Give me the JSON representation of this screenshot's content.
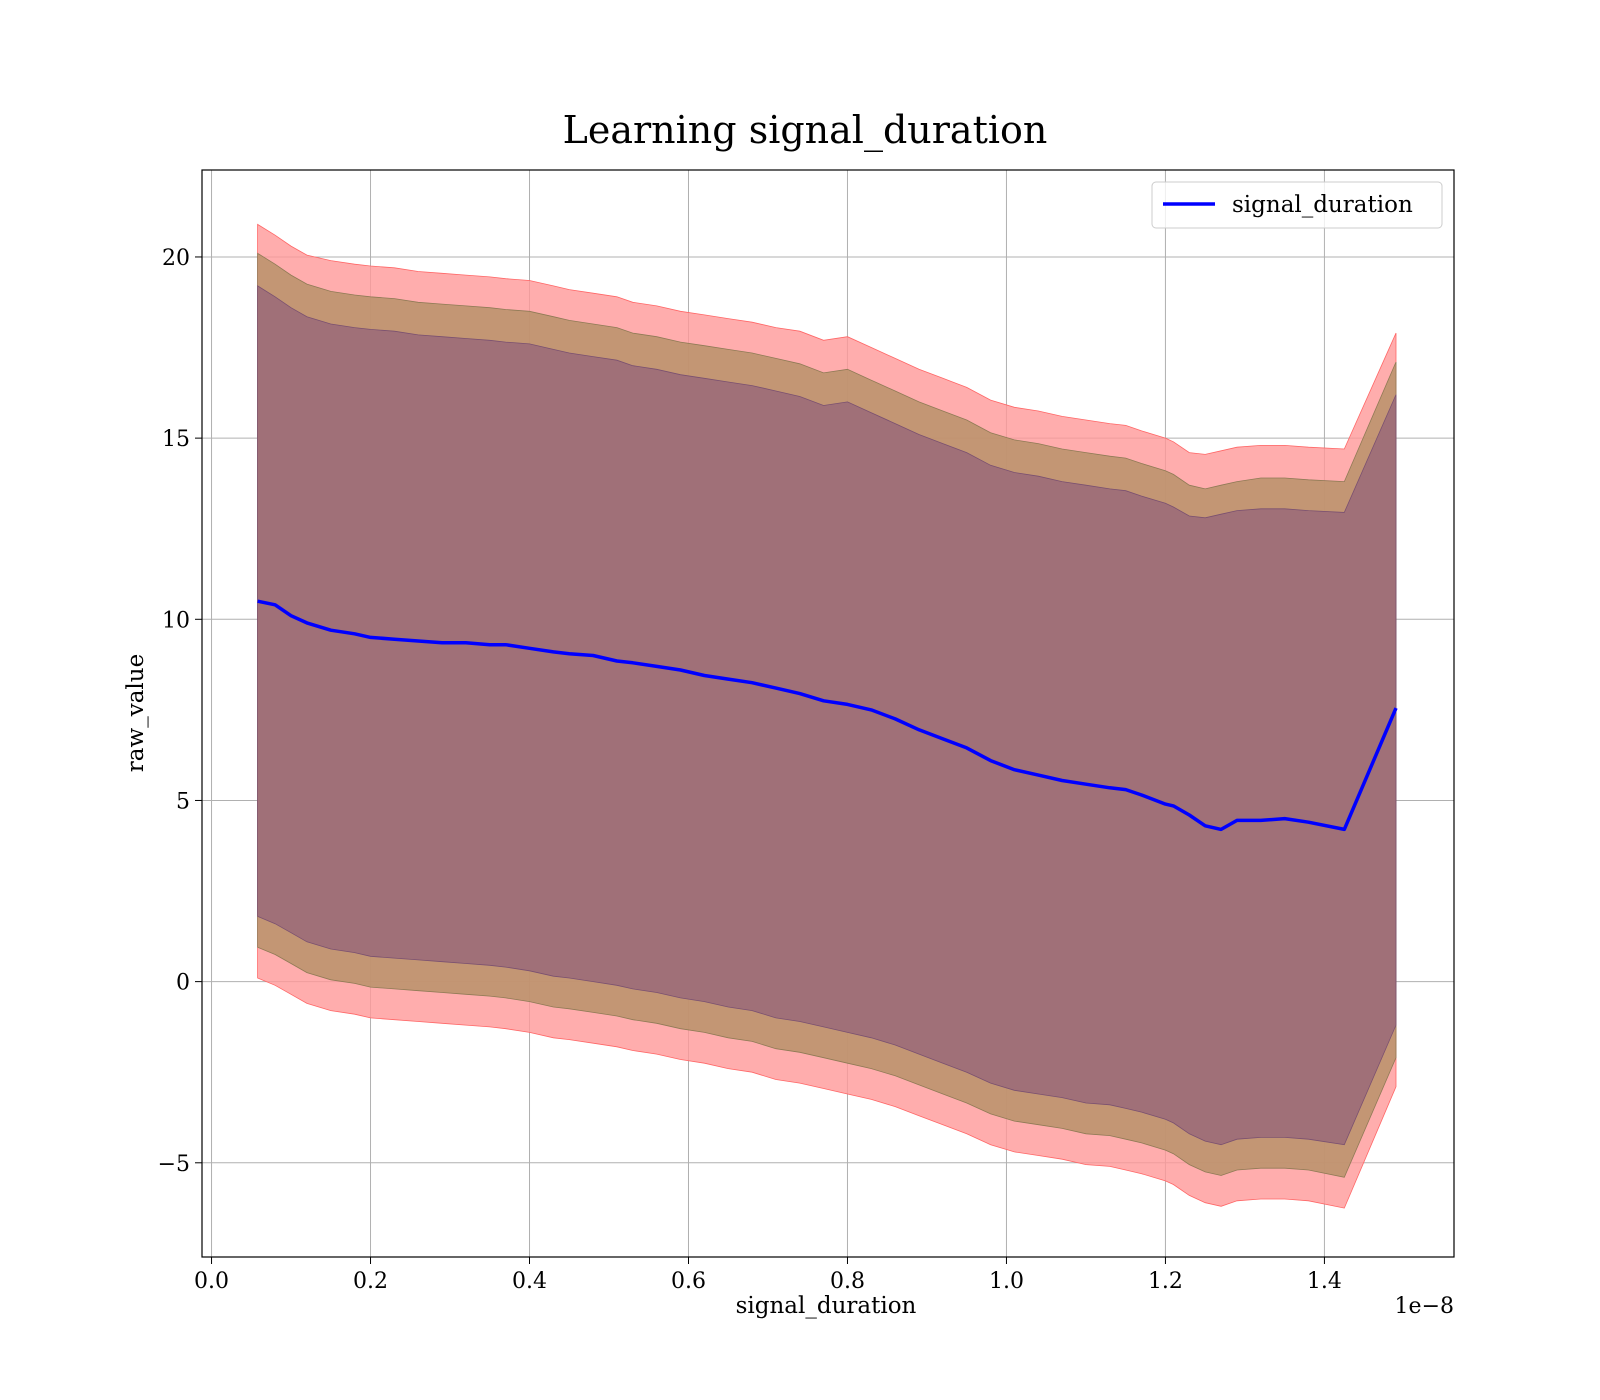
{
  "chart_data": {
    "type": "line",
    "title": "Learning signal_duration",
    "xlabel": "signal_duration",
    "ylabel": "raw_value",
    "x_offset_label": "1e−8",
    "xlim": [
      -0.012,
      1.563
    ],
    "ylim": [
      -7.6,
      22.4
    ],
    "x_ticks": [
      0.0,
      0.2,
      0.4,
      0.6,
      0.8,
      1.0,
      1.2,
      1.4
    ],
    "x_tick_labels": [
      "0.0",
      "0.2",
      "0.4",
      "0.6",
      "0.8",
      "1.0",
      "1.2",
      "1.4"
    ],
    "y_ticks": [
      -5,
      0,
      5,
      10,
      15,
      20
    ],
    "y_tick_labels": [
      "−5",
      "0",
      "5",
      "10",
      "15",
      "20"
    ],
    "grid": true,
    "legend": {
      "position": "top-right",
      "entries": [
        "signal_duration"
      ]
    },
    "colors": {
      "line": "#0000ff",
      "band_outer": "#ff9999",
      "band_mid": "#b8926a",
      "band_inner": "#a07078"
    },
    "series": [
      {
        "name": "signal_duration",
        "x": [
          0.058,
          0.08,
          0.1,
          0.12,
          0.15,
          0.18,
          0.2,
          0.23,
          0.26,
          0.29,
          0.32,
          0.35,
          0.37,
          0.4,
          0.43,
          0.45,
          0.48,
          0.51,
          0.53,
          0.56,
          0.59,
          0.62,
          0.65,
          0.68,
          0.71,
          0.74,
          0.77,
          0.8,
          0.83,
          0.86,
          0.89,
          0.92,
          0.95,
          0.98,
          1.01,
          1.04,
          1.07,
          1.1,
          1.13,
          1.15,
          1.17,
          1.2,
          1.21,
          1.23,
          1.25,
          1.27,
          1.29,
          1.32,
          1.35,
          1.38,
          1.425,
          1.49
        ],
        "y": [
          10.5,
          10.4,
          10.1,
          9.9,
          9.7,
          9.6,
          9.5,
          9.45,
          9.4,
          9.35,
          9.35,
          9.3,
          9.3,
          9.2,
          9.1,
          9.05,
          9.0,
          8.85,
          8.8,
          8.7,
          8.6,
          8.45,
          8.35,
          8.25,
          8.1,
          7.95,
          7.75,
          7.65,
          7.5,
          7.25,
          6.95,
          6.7,
          6.45,
          6.1,
          5.85,
          5.7,
          5.55,
          5.45,
          5.35,
          5.3,
          5.15,
          4.9,
          4.85,
          4.6,
          4.3,
          4.2,
          4.45,
          4.45,
          4.5,
          4.4,
          4.2,
          7.55
        ],
        "band_outer_upper": [
          20.9,
          20.6,
          20.3,
          20.05,
          19.9,
          19.8,
          19.75,
          19.7,
          19.6,
          19.55,
          19.5,
          19.45,
          19.4,
          19.35,
          19.2,
          19.1,
          19.0,
          18.9,
          18.75,
          18.65,
          18.5,
          18.4,
          18.3,
          18.2,
          18.05,
          17.95,
          17.7,
          17.8,
          17.5,
          17.2,
          16.9,
          16.65,
          16.4,
          16.05,
          15.85,
          15.75,
          15.6,
          15.5,
          15.4,
          15.35,
          15.2,
          15.0,
          14.9,
          14.6,
          14.55,
          14.65,
          14.75,
          14.8,
          14.8,
          14.75,
          14.7,
          17.9
        ],
        "band_mid_upper": [
          20.1,
          19.8,
          19.5,
          19.25,
          19.05,
          18.95,
          18.9,
          18.85,
          18.75,
          18.7,
          18.65,
          18.6,
          18.55,
          18.5,
          18.35,
          18.25,
          18.15,
          18.05,
          17.9,
          17.8,
          17.65,
          17.55,
          17.45,
          17.35,
          17.2,
          17.05,
          16.8,
          16.9,
          16.6,
          16.3,
          16.0,
          15.75,
          15.5,
          15.15,
          14.95,
          14.85,
          14.7,
          14.6,
          14.5,
          14.45,
          14.3,
          14.1,
          14.0,
          13.7,
          13.6,
          13.7,
          13.8,
          13.9,
          13.9,
          13.85,
          13.8,
          17.1
        ],
        "band_inner_upper": [
          19.2,
          18.9,
          18.6,
          18.35,
          18.15,
          18.05,
          18.0,
          17.95,
          17.85,
          17.8,
          17.75,
          17.7,
          17.65,
          17.6,
          17.45,
          17.35,
          17.25,
          17.15,
          17.0,
          16.9,
          16.75,
          16.65,
          16.55,
          16.45,
          16.3,
          16.15,
          15.9,
          16.0,
          15.7,
          15.4,
          15.1,
          14.85,
          14.6,
          14.25,
          14.05,
          13.95,
          13.8,
          13.7,
          13.6,
          13.55,
          13.4,
          13.2,
          13.1,
          12.85,
          12.8,
          12.9,
          13.0,
          13.05,
          13.05,
          13.0,
          12.95,
          16.2
        ],
        "band_inner_lower": [
          1.8,
          1.6,
          1.35,
          1.1,
          0.9,
          0.8,
          0.7,
          0.65,
          0.6,
          0.55,
          0.5,
          0.45,
          0.4,
          0.3,
          0.15,
          0.1,
          0.0,
          -0.1,
          -0.2,
          -0.3,
          -0.45,
          -0.55,
          -0.7,
          -0.8,
          -1.0,
          -1.1,
          -1.25,
          -1.4,
          -1.55,
          -1.75,
          -2.0,
          -2.25,
          -2.5,
          -2.8,
          -3.0,
          -3.1,
          -3.2,
          -3.35,
          -3.4,
          -3.5,
          -3.6,
          -3.8,
          -3.9,
          -4.2,
          -4.4,
          -4.5,
          -4.35,
          -4.3,
          -4.3,
          -4.35,
          -4.5,
          -1.2
        ],
        "band_mid_lower": [
          0.95,
          0.75,
          0.5,
          0.25,
          0.05,
          -0.05,
          -0.15,
          -0.2,
          -0.25,
          -0.3,
          -0.35,
          -0.4,
          -0.45,
          -0.55,
          -0.7,
          -0.75,
          -0.85,
          -0.95,
          -1.05,
          -1.15,
          -1.3,
          -1.4,
          -1.55,
          -1.65,
          -1.85,
          -1.95,
          -2.1,
          -2.25,
          -2.4,
          -2.6,
          -2.85,
          -3.1,
          -3.35,
          -3.65,
          -3.85,
          -3.95,
          -4.05,
          -4.2,
          -4.25,
          -4.35,
          -4.45,
          -4.65,
          -4.75,
          -5.05,
          -5.25,
          -5.35,
          -5.2,
          -5.15,
          -5.15,
          -5.2,
          -5.4,
          -2.1
        ],
        "band_outer_lower": [
          0.1,
          -0.1,
          -0.35,
          -0.6,
          -0.8,
          -0.9,
          -1.0,
          -1.05,
          -1.1,
          -1.15,
          -1.2,
          -1.25,
          -1.3,
          -1.4,
          -1.55,
          -1.6,
          -1.7,
          -1.8,
          -1.9,
          -2.0,
          -2.15,
          -2.25,
          -2.4,
          -2.5,
          -2.7,
          -2.8,
          -2.95,
          -3.1,
          -3.25,
          -3.45,
          -3.7,
          -3.95,
          -4.2,
          -4.5,
          -4.7,
          -4.8,
          -4.9,
          -5.05,
          -5.1,
          -5.2,
          -5.3,
          -5.5,
          -5.6,
          -5.9,
          -6.1,
          -6.2,
          -6.05,
          -6.0,
          -6.0,
          -6.05,
          -6.25,
          -2.9
        ]
      }
    ]
  }
}
